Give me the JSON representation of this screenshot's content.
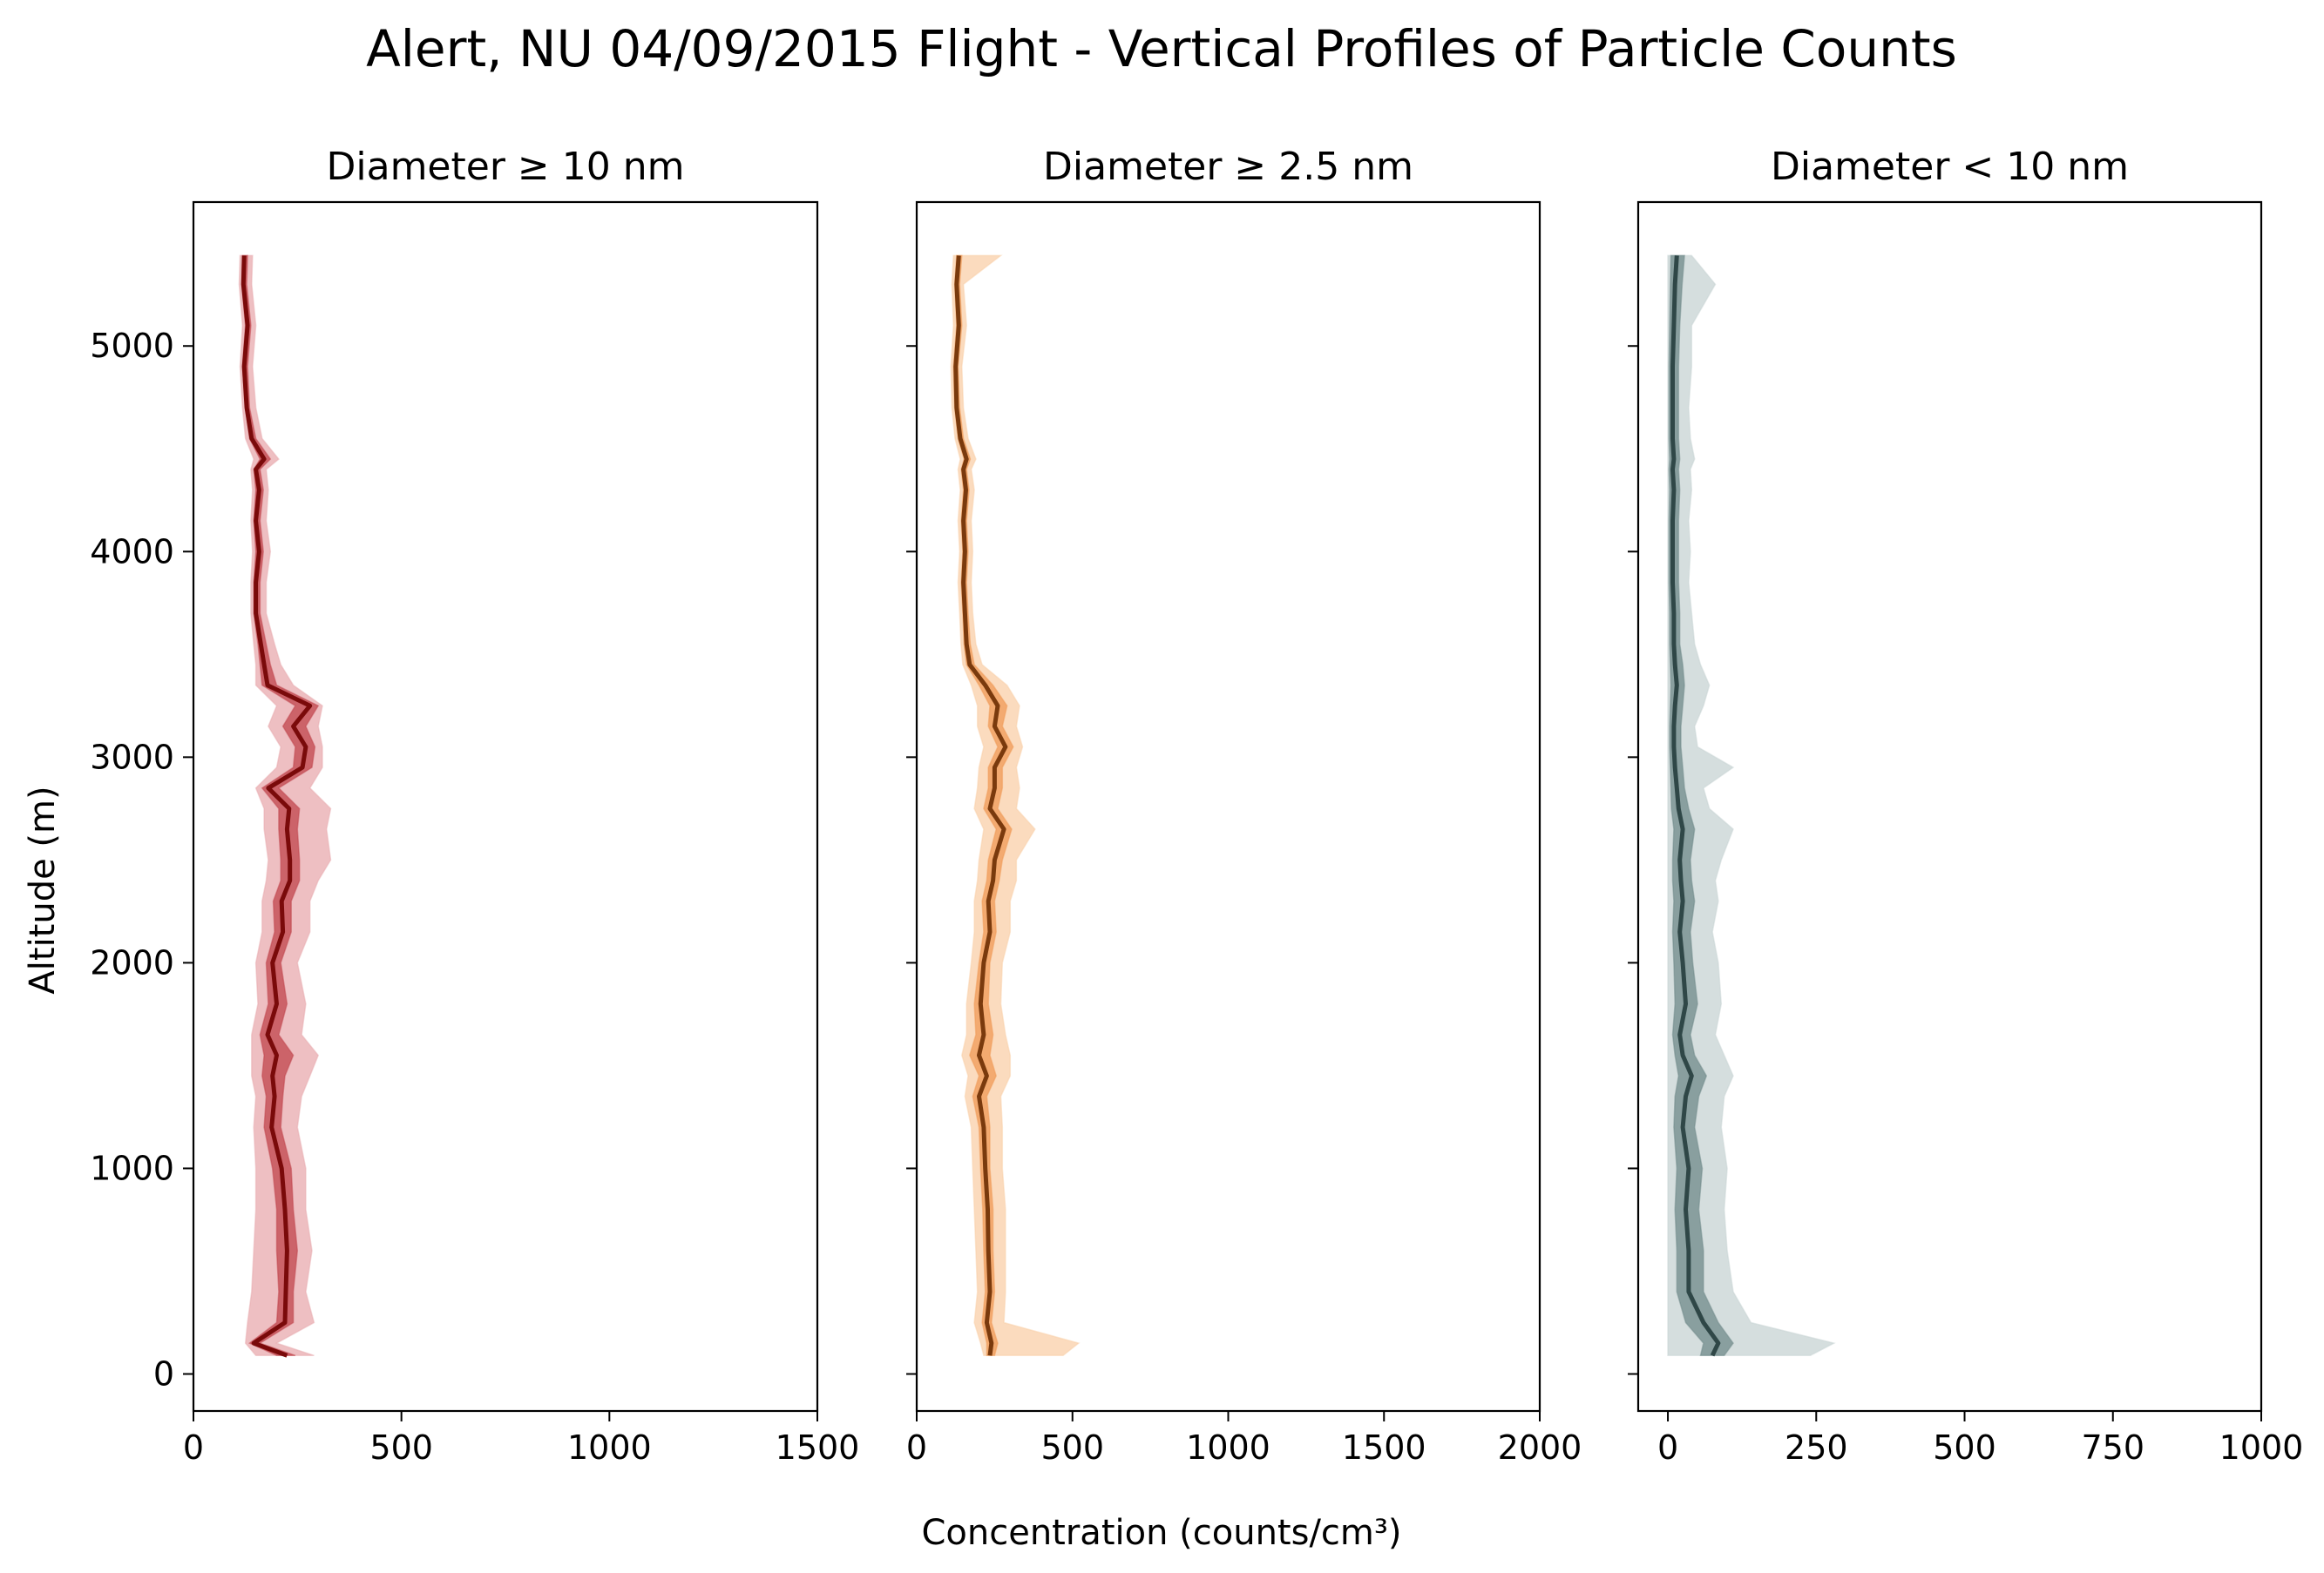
{
  "figure": {
    "title": "Alert, NU 04/09/2015 Flight - Vertical Profiles of Particle Counts",
    "xlabel": "Concentration (counts/cm³)",
    "ylabel": "Altitude (m)"
  },
  "chart_data": [
    {
      "type": "line",
      "title": "Diameter ≥ 10 nm",
      "xlim": [
        0,
        1500
      ],
      "ylim": [
        -180,
        5700
      ],
      "xticks": [
        0,
        500,
        1000,
        1500
      ],
      "yticks": [
        0,
        1000,
        2000,
        3000,
        4000,
        5000
      ],
      "colors": {
        "line": "#7a0a0a",
        "band_inner": "#c0444b",
        "band_outer": "#e8a9ad"
      },
      "altitude": [
        90,
        150,
        250,
        400,
        600,
        800,
        1000,
        1200,
        1350,
        1450,
        1550,
        1650,
        1800,
        2000,
        2150,
        2300,
        2400,
        2500,
        2650,
        2750,
        2850,
        2950,
        3050,
        3150,
        3250,
        3350,
        3450,
        3550,
        3700,
        3850,
        4000,
        4150,
        4300,
        4400,
        4450,
        4550,
        4700,
        4900,
        5100,
        5300,
        5440
      ],
      "mean": [
        225,
        145,
        220,
        222,
        225,
        220,
        212,
        188,
        195,
        190,
        200,
        178,
        200,
        190,
        215,
        212,
        232,
        232,
        225,
        230,
        180,
        262,
        270,
        240,
        280,
        178,
        170,
        162,
        150,
        150,
        158,
        150,
        158,
        150,
        170,
        140,
        128,
        122,
        130,
        120,
        122
      ],
      "inner_lo": [
        200,
        135,
        200,
        205,
        200,
        200,
        190,
        170,
        175,
        165,
        170,
        160,
        180,
        175,
        195,
        192,
        210,
        210,
        205,
        205,
        165,
        240,
        245,
        215,
        245,
        165,
        160,
        155,
        145,
        145,
        150,
        145,
        150,
        145,
        160,
        135,
        125,
        118,
        125,
        116,
        118
      ],
      "inner_hi": [
        245,
        160,
        240,
        240,
        250,
        240,
        235,
        210,
        215,
        220,
        240,
        205,
        225,
        210,
        235,
        235,
        255,
        255,
        250,
        255,
        205,
        285,
        292,
        270,
        300,
        200,
        185,
        175,
        160,
        160,
        168,
        160,
        168,
        160,
        185,
        150,
        135,
        130,
        138,
        128,
        130
      ],
      "outer_lo": [
        150,
        125,
        130,
        140,
        145,
        150,
        150,
        145,
        150,
        140,
        140,
        140,
        155,
        150,
        165,
        165,
        175,
        180,
        170,
        170,
        150,
        200,
        210,
        180,
        200,
        150,
        150,
        145,
        138,
        138,
        142,
        138,
        142,
        138,
        145,
        125,
        118,
        112,
        118,
        110,
        112
      ],
      "outer_hi": [
        290,
        200,
        290,
        270,
        285,
        270,
        270,
        250,
        260,
        280,
        300,
        260,
        270,
        250,
        280,
        280,
        300,
        330,
        320,
        330,
        280,
        310,
        310,
        300,
        310,
        240,
        210,
        195,
        175,
        175,
        185,
        175,
        180,
        175,
        205,
        165,
        150,
        142,
        150,
        140,
        142
      ]
    },
    {
      "type": "line",
      "title": "Diameter ≥ 2.5 nm",
      "xlim": [
        0,
        2000
      ],
      "ylim": [
        -180,
        5700
      ],
      "xticks": [
        0,
        500,
        1000,
        1500,
        2000
      ],
      "yticks": [
        0,
        1000,
        2000,
        3000,
        4000,
        5000
      ],
      "colors": {
        "line": "#7a3a0d",
        "band_inner": "#f09a55",
        "band_outer": "#f9cfa8"
      },
      "altitude": [
        90,
        150,
        250,
        400,
        600,
        800,
        1000,
        1200,
        1350,
        1450,
        1550,
        1650,
        1800,
        2000,
        2150,
        2300,
        2400,
        2500,
        2650,
        2750,
        2850,
        2950,
        3050,
        3150,
        3250,
        3350,
        3450,
        3550,
        3700,
        3850,
        4000,
        4150,
        4300,
        4400,
        4450,
        4550,
        4700,
        4900,
        5100,
        5300,
        5440
      ],
      "mean": [
        235,
        240,
        225,
        235,
        230,
        228,
        220,
        215,
        200,
        225,
        200,
        215,
        205,
        215,
        235,
        230,
        245,
        250,
        280,
        235,
        250,
        250,
        285,
        250,
        260,
        220,
        170,
        160,
        155,
        150,
        155,
        150,
        158,
        150,
        160,
        140,
        128,
        125,
        135,
        128,
        135
      ],
      "inner_lo": [
        225,
        225,
        210,
        220,
        215,
        212,
        205,
        200,
        180,
        200,
        170,
        190,
        185,
        200,
        215,
        210,
        225,
        230,
        255,
        215,
        230,
        230,
        260,
        230,
        235,
        200,
        160,
        152,
        148,
        143,
        148,
        143,
        150,
        143,
        152,
        133,
        122,
        118,
        128,
        122,
        128
      ],
      "inner_hi": [
        250,
        260,
        240,
        250,
        245,
        245,
        235,
        235,
        225,
        255,
        235,
        245,
        230,
        235,
        255,
        250,
        265,
        275,
        305,
        260,
        275,
        275,
        310,
        275,
        290,
        245,
        185,
        172,
        165,
        160,
        165,
        160,
        168,
        160,
        172,
        150,
        138,
        133,
        145,
        138,
        145
      ],
      "outer_lo": [
        215,
        205,
        185,
        195,
        190,
        185,
        180,
        175,
        155,
        165,
        145,
        160,
        160,
        175,
        185,
        185,
        195,
        200,
        215,
        185,
        195,
        200,
        215,
        195,
        195,
        175,
        148,
        142,
        138,
        133,
        138,
        133,
        140,
        133,
        140,
        123,
        113,
        110,
        118,
        113,
        118
      ],
      "outer_hi": [
        470,
        520,
        280,
        285,
        285,
        285,
        275,
        275,
        270,
        300,
        300,
        285,
        270,
        275,
        300,
        300,
        320,
        320,
        380,
        320,
        330,
        320,
        340,
        320,
        330,
        290,
        210,
        190,
        180,
        175,
        180,
        175,
        185,
        175,
        190,
        165,
        150,
        145,
        160,
        150,
        270
      ]
    },
    {
      "type": "line",
      "title": "Diameter < 10 nm",
      "xlim": [
        -50,
        1000
      ],
      "ylim": [
        -180,
        5700
      ],
      "xticks": [
        0,
        250,
        500,
        750,
        1000
      ],
      "yticks": [
        0,
        1000,
        2000,
        3000,
        4000,
        5000
      ],
      "colors": {
        "line": "#2f4747",
        "band_inner": "#6f8a8a",
        "band_outer": "#c7d3d3"
      },
      "altitude": [
        90,
        150,
        250,
        400,
        600,
        800,
        1000,
        1200,
        1350,
        1450,
        1550,
        1650,
        1800,
        2000,
        2150,
        2300,
        2400,
        2500,
        2650,
        2750,
        2850,
        2950,
        3050,
        3150,
        3250,
        3350,
        3450,
        3550,
        3700,
        3850,
        4000,
        4150,
        4300,
        4400,
        4450,
        4550,
        4700,
        4900,
        5100,
        5300,
        5440
      ],
      "mean": [
        75,
        85,
        60,
        35,
        35,
        30,
        35,
        25,
        30,
        40,
        25,
        20,
        30,
        25,
        20,
        25,
        22,
        20,
        25,
        18,
        15,
        12,
        10,
        10,
        12,
        15,
        12,
        10,
        10,
        8,
        8,
        8,
        10,
        8,
        10,
        8,
        8,
        8,
        10,
        12,
        15
      ],
      "inner_lo": [
        55,
        60,
        30,
        15,
        15,
        12,
        15,
        10,
        12,
        18,
        12,
        8,
        12,
        10,
        8,
        10,
        8,
        8,
        10,
        6,
        5,
        4,
        3,
        3,
        4,
        5,
        4,
        3,
        3,
        2,
        2,
        2,
        3,
        2,
        3,
        2,
        2,
        2,
        3,
        4,
        5
      ],
      "inner_hi": [
        95,
        110,
        85,
        60,
        60,
        52,
        58,
        45,
        52,
        65,
        45,
        38,
        50,
        42,
        38,
        45,
        40,
        38,
        45,
        35,
        28,
        25,
        22,
        22,
        25,
        28,
        25,
        20,
        20,
        18,
        18,
        18,
        20,
        18,
        20,
        18,
        18,
        18,
        20,
        24,
        28
      ],
      "outer_lo": [
        0,
        0,
        0,
        0,
        0,
        0,
        0,
        0,
        0,
        0,
        0,
        0,
        0,
        0,
        0,
        0,
        0,
        0,
        0,
        0,
        0,
        0,
        0,
        0,
        0,
        0,
        0,
        0,
        0,
        0,
        0,
        0,
        0,
        0,
        0,
        0,
        0,
        0,
        0,
        0,
        0
      ],
      "outer_hi": [
        240,
        280,
        140,
        110,
        100,
        95,
        100,
        90,
        95,
        110,
        95,
        80,
        90,
        85,
        75,
        85,
        80,
        90,
        110,
        70,
        60,
        110,
        50,
        45,
        60,
        70,
        55,
        45,
        40,
        35,
        38,
        35,
        40,
        38,
        45,
        38,
        35,
        40,
        40,
        80,
        40
      ]
    }
  ]
}
